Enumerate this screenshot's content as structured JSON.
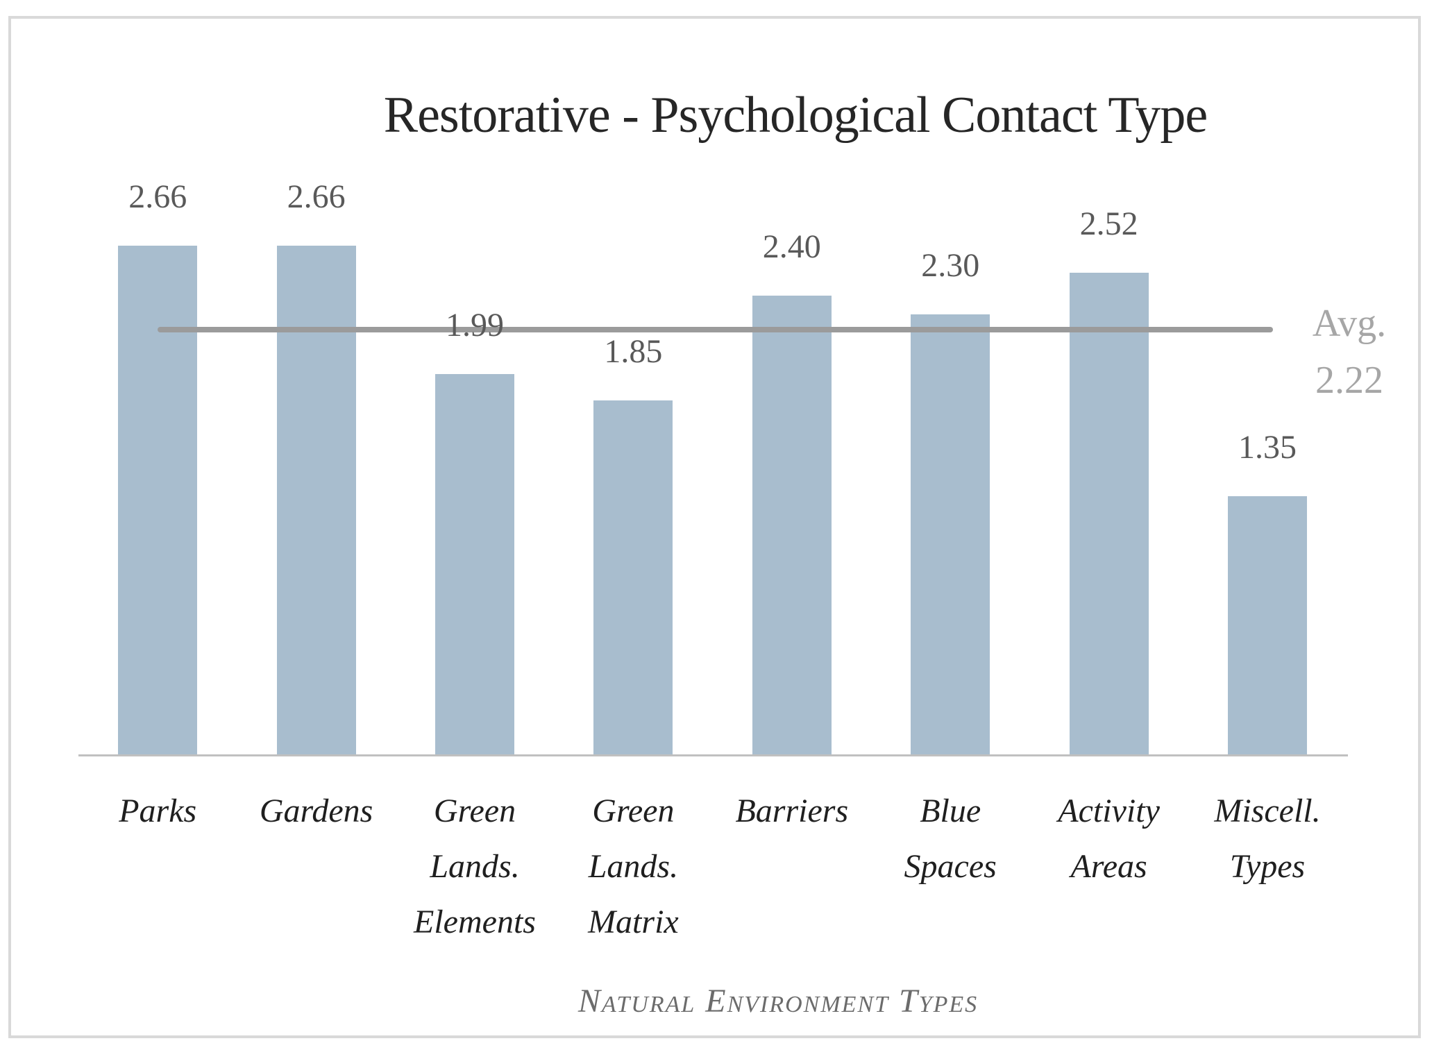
{
  "chart_data": {
    "type": "bar",
    "title": "Restorative - Psychological Contact Type",
    "xlabel": "Natural Environment Types",
    "categories": [
      "Parks",
      "Gardens",
      "Green Lands. Elements",
      "Green Lands. Matrix",
      "Barriers",
      "Blue Spaces",
      "Activity Areas",
      "Miscell. Types"
    ],
    "category_lines": [
      [
        "Parks"
      ],
      [
        "Gardens"
      ],
      [
        "Green",
        "Lands.",
        "Elements"
      ],
      [
        "Green",
        "Lands.",
        "Matrix"
      ],
      [
        "Barriers"
      ],
      [
        "Blue",
        "Spaces"
      ],
      [
        "Activity",
        "Areas"
      ],
      [
        "Miscell.",
        "Types"
      ]
    ],
    "values": [
      2.66,
      2.66,
      1.99,
      1.85,
      2.4,
      2.3,
      2.52,
      1.35
    ],
    "value_labels": [
      "2.66",
      "2.66",
      "1.99",
      "1.85",
      "2.40",
      "2.30",
      "2.52",
      "1.35"
    ],
    "average": {
      "label": "Avg.",
      "value": 2.22,
      "value_label": "2.22"
    },
    "ylim": [
      0,
      3.0
    ],
    "y_axis_visible": false,
    "grid": false,
    "legend": false,
    "colors": {
      "bar_fill": "#a8bdce",
      "avg_line": "#9b9b9b",
      "avg_text": "#a6a6a6",
      "value_text": "#595959",
      "category_text": "#1f1f1f",
      "title_text": "#262626",
      "axis_title_text": "#6b6b6b",
      "baseline": "#c0c0c0",
      "frame_border": "#d9d9d9"
    }
  }
}
